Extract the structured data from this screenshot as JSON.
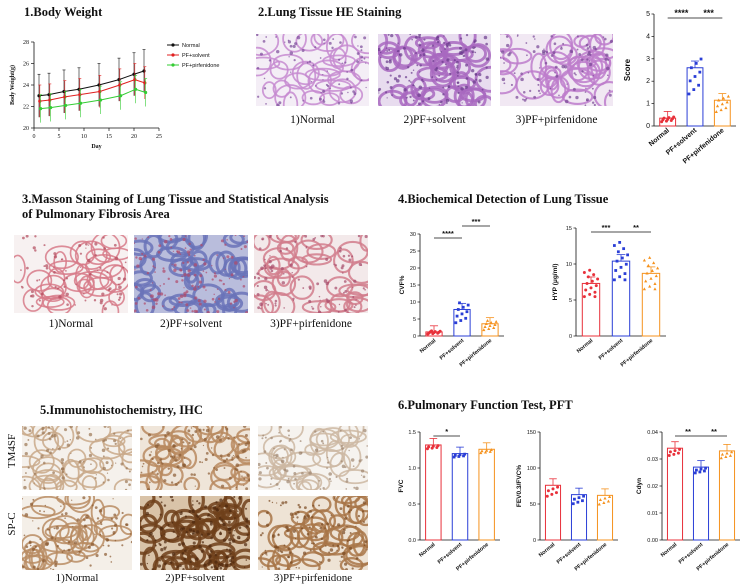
{
  "sections": {
    "s1": "1.Body Weight",
    "s2": "2.Lung Tissue HE Staining",
    "s3_line1": "3.Masson Staining of Lung Tissue and Statistical Analysis",
    "s3_line2": "of Pulmonary Fibrosis Area",
    "s4": "4.Biochemical Detection of Lung Tissue",
    "s5": "5.Immunohistochemistry, IHC",
    "s6": "6.Pulmonary Function Test, PFT"
  },
  "captions": {
    "normal": "1)Normal",
    "solvent": "2)PF+solvent",
    "pirf": "3)PF+pirfenidone"
  },
  "ihc_rows": {
    "r1": "TM4SF",
    "r2": "SP-C"
  },
  "groups": [
    "Normal",
    "PF+solvent",
    "PF+pirfenidone"
  ],
  "colors": {
    "normal": "#e8303a",
    "solvent": "#2a3ed6",
    "pirf": "#f5921e",
    "bw_normal": "#111111",
    "bw_solvent": "#e02020",
    "bw_pirf": "#33cc33"
  },
  "chart_data": [
    {
      "id": "body_weight",
      "type": "line",
      "xlabel": "Day",
      "ylabel": "Body Weight(g)",
      "xlim": [
        0,
        25
      ],
      "ylim": [
        20,
        28
      ],
      "xticks": [
        "0",
        "5",
        "10",
        "15",
        "20",
        "25"
      ],
      "yticks": [
        "20",
        "22",
        "24",
        "26",
        "28"
      ],
      "x": [
        1,
        3,
        6,
        9,
        13,
        17,
        20,
        22
      ],
      "series": [
        {
          "name": "Normal",
          "values": [
            23.0,
            23.1,
            23.4,
            23.6,
            24.0,
            24.5,
            25.0,
            25.3
          ],
          "err": 2.0
        },
        {
          "name": "PF+solvent",
          "values": [
            22.5,
            22.6,
            22.9,
            23.1,
            23.4,
            24.0,
            24.5,
            24.2
          ],
          "err": 1.5
        },
        {
          "name": "PF+pirfenidone",
          "values": [
            21.8,
            21.9,
            22.1,
            22.3,
            22.6,
            23.0,
            23.6,
            23.3
          ],
          "err": 1.3
        }
      ]
    },
    {
      "id": "he_score",
      "type": "bar",
      "ylabel": "Score",
      "ylim": [
        0,
        5
      ],
      "yticks": [
        "0",
        "1",
        "2",
        "3",
        "4",
        "5"
      ],
      "categories": [
        "Normal",
        "PF+solvent",
        "PF+pirfenidone"
      ],
      "values": [
        0.35,
        2.6,
        1.15
      ],
      "sig": [
        "****",
        "***"
      ]
    },
    {
      "id": "cvf",
      "type": "bar",
      "ylabel": "CVF%",
      "ylim": [
        0,
        30
      ],
      "yticks": [
        "0",
        "5",
        "10",
        "15",
        "20",
        "25",
        "30"
      ],
      "categories": [
        "Normal",
        "PF+solvent",
        "PF+pirfenidone"
      ],
      "values": [
        1.2,
        7.8,
        3.6
      ],
      "sig": [
        "****",
        "***"
      ]
    },
    {
      "id": "hyp",
      "type": "bar",
      "ylabel": "HYP (μg/ml)",
      "ylim": [
        0,
        15
      ],
      "yticks": [
        "0",
        "5",
        "10",
        "15"
      ],
      "categories": [
        "Normal",
        "PF+solvent",
        "PF+pirfenidone"
      ],
      "values": [
        7.3,
        10.4,
        8.7
      ],
      "sig": [
        "***",
        "**"
      ]
    },
    {
      "id": "fvc",
      "type": "bar",
      "ylabel": "FVC",
      "ylim": [
        0,
        1.5
      ],
      "yticks": [
        "0.0",
        "0.5",
        "1.0",
        "1.5"
      ],
      "categories": [
        "Normal",
        "PF+solvent",
        "PF+pirfenidone"
      ],
      "values": [
        1.32,
        1.2,
        1.26
      ],
      "sig": [
        "*"
      ]
    },
    {
      "id": "fev",
      "type": "bar",
      "ylabel": "FEV0.3/FVC%",
      "ylim": [
        0,
        150
      ],
      "yticks": [
        "0",
        "50",
        "100",
        "150"
      ],
      "categories": [
        "Normal",
        "PF+solvent",
        "PF+pirfenidone"
      ],
      "values": [
        76,
        63,
        62
      ],
      "sig": []
    },
    {
      "id": "cdyn",
      "type": "bar",
      "ylabel": "Cdyn",
      "ylim": [
        0,
        0.04
      ],
      "yticks": [
        "0.00",
        "0.01",
        "0.02",
        "0.03",
        "0.04"
      ],
      "categories": [
        "Normal",
        "PF+solvent",
        "PF+pirfenidone"
      ],
      "values": [
        0.034,
        0.027,
        0.033
      ],
      "sig": [
        "**",
        "**"
      ]
    }
  ]
}
